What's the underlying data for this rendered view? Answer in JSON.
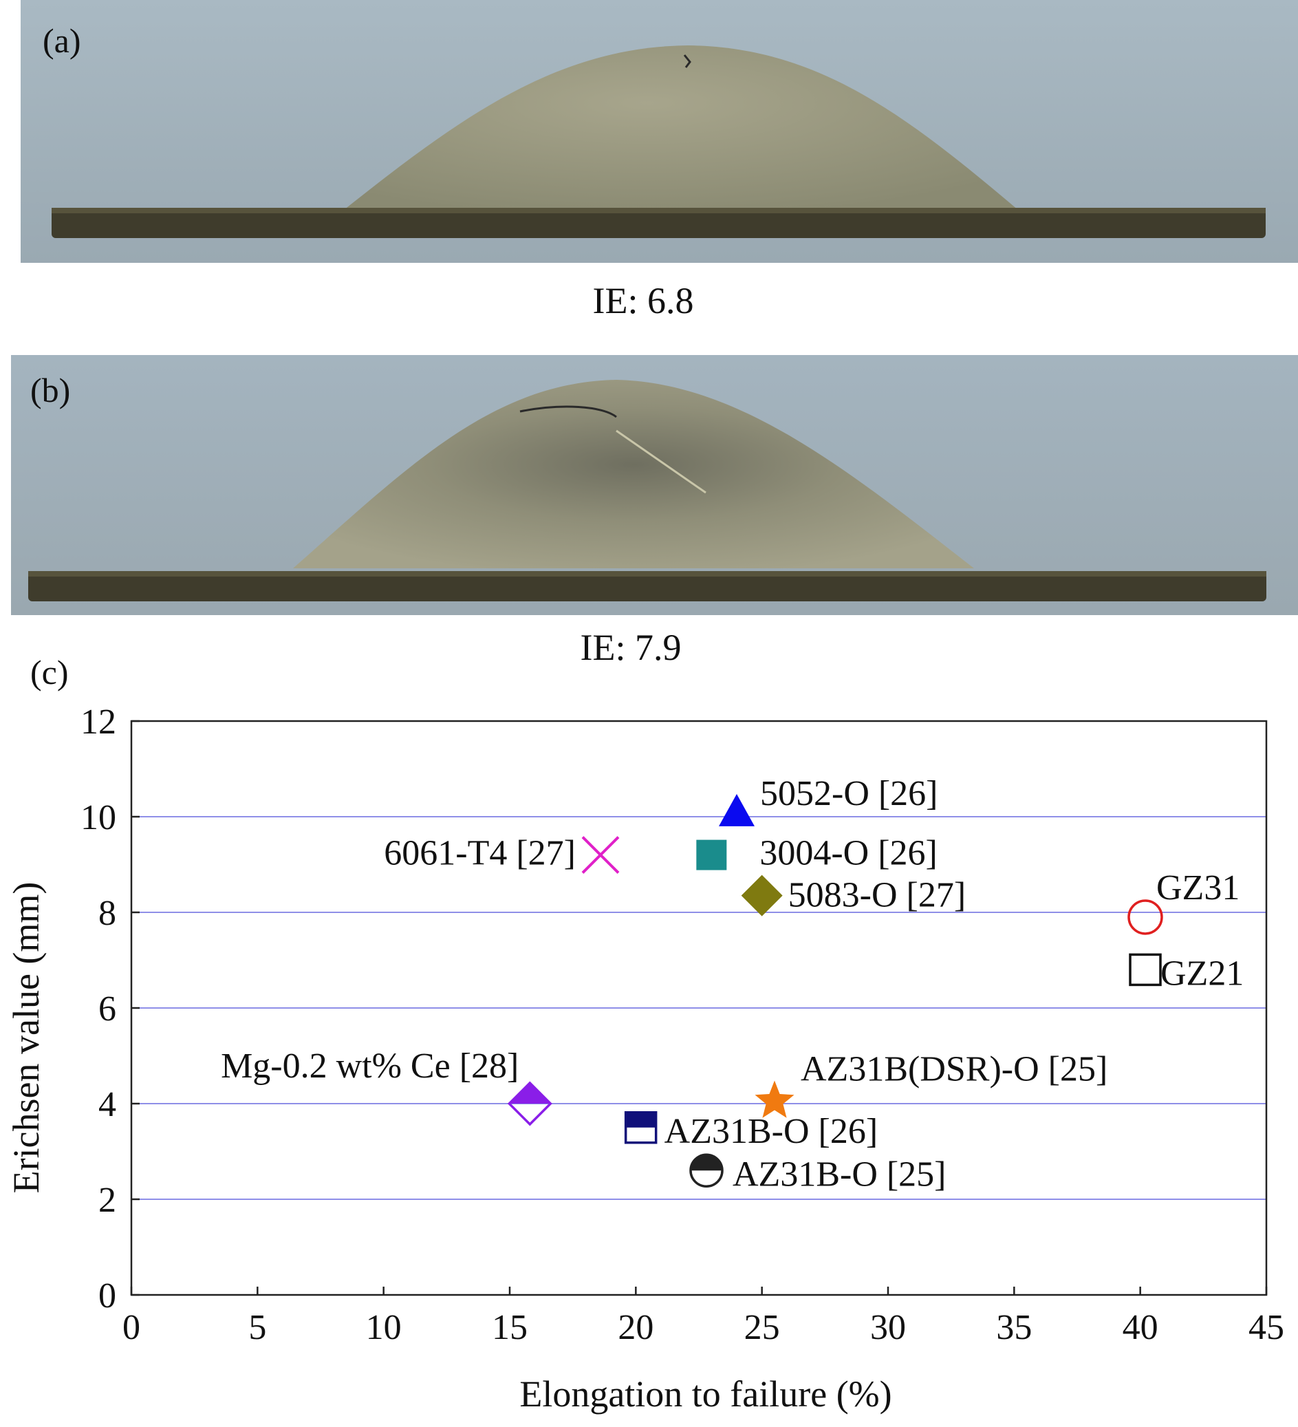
{
  "panels": {
    "a": {
      "label": "(a)",
      "caption": "IE: 6.8"
    },
    "b": {
      "label": "(b)",
      "caption": "IE: 7.9"
    },
    "c": {
      "label": "(c)"
    }
  },
  "colors": {
    "photo_background": "#9fb0bb",
    "dome": "#9c9a80",
    "sheet": "#3f3c2c",
    "gridline": "#8f8fe8"
  },
  "chart_data": {
    "type": "scatter",
    "xlabel": "Elongation to failure (%)",
    "ylabel": "Erichsen value (mm)",
    "xlim": [
      0,
      45
    ],
    "ylim": [
      0,
      12
    ],
    "xticks": [
      "0",
      "5",
      "10",
      "15",
      "20",
      "25",
      "30",
      "35",
      "40",
      "45"
    ],
    "yticks": [
      "0",
      "2",
      "4",
      "6",
      "8",
      "10",
      "12"
    ],
    "grid": "horizontal",
    "points": [
      {
        "label": "5052-O [26]",
        "x": 24.0,
        "y": 10.1,
        "marker": "triangle",
        "color": "#0a0af0"
      },
      {
        "label": "6061-T4 [27]",
        "x": 18.6,
        "y": 9.2,
        "marker": "x",
        "color": "#e020c8"
      },
      {
        "label": "3004-O [26]",
        "x": 23.0,
        "y": 9.2,
        "marker": "square",
        "color": "#1a8c8c"
      },
      {
        "label": "5083-O [27]",
        "x": 25.0,
        "y": 8.35,
        "marker": "diamond",
        "color": "#7f7a10"
      },
      {
        "label": "GZ31",
        "x": 40.2,
        "y": 7.9,
        "marker": "open-circle",
        "color": "#e02020"
      },
      {
        "label": "GZ21",
        "x": 40.2,
        "y": 6.8,
        "marker": "open-square",
        "color": "#111111"
      },
      {
        "label": "Mg-0.2 wt% Ce [28]",
        "x": 15.8,
        "y": 4.0,
        "marker": "half-diamond",
        "color": "#8a1ee8"
      },
      {
        "label": "AZ31B(DSR)-O [25]",
        "x": 25.5,
        "y": 4.05,
        "marker": "star",
        "color": "#f07a10"
      },
      {
        "label": "AZ31B-O [26]",
        "x": 20.2,
        "y": 3.5,
        "marker": "half-square",
        "color": "#10107a"
      },
      {
        "label": "AZ31B-O [25]",
        "x": 22.8,
        "y": 2.6,
        "marker": "half-circle",
        "color": "#222222"
      }
    ]
  }
}
